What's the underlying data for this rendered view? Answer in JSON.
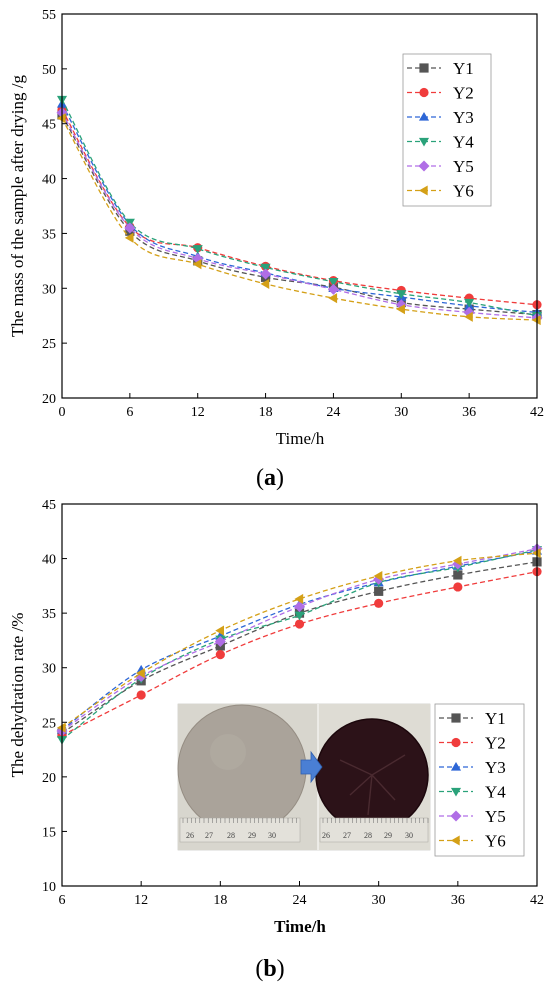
{
  "panels": [
    {
      "caption_open": "(",
      "caption_letter": "a",
      "caption_close": ")"
    },
    {
      "caption_open": "(",
      "caption_letter": "b",
      "caption_close": ")"
    }
  ],
  "photo": {
    "left_ruler_ticks": [
      "26",
      "27",
      "28",
      "29",
      "30"
    ],
    "right_ruler_ticks": [
      "26",
      "27",
      "28",
      "29",
      "30"
    ]
  },
  "chart_data": [
    {
      "type": "line",
      "title": "",
      "xlabel": "Time/h",
      "ylabel": "The mass of the sample after drying /g",
      "xlim": [
        0,
        42
      ],
      "ylim": [
        20,
        55
      ],
      "xticks": [
        0,
        6,
        12,
        18,
        24,
        30,
        36,
        42
      ],
      "yticks": [
        20,
        25,
        30,
        35,
        40,
        45,
        50,
        55
      ],
      "x": [
        0,
        6,
        12,
        18,
        24,
        30,
        36,
        42
      ],
      "grid": false,
      "legend_position": "top-right",
      "series": [
        {
          "name": "Y1",
          "color": "#555555",
          "marker": "square",
          "values": [
            45.8,
            35.2,
            32.5,
            31.0,
            30.1,
            28.7,
            28.1,
            27.6
          ]
        },
        {
          "name": "Y2",
          "color": "#f03c3c",
          "marker": "circle",
          "values": [
            46.3,
            35.6,
            33.7,
            32.0,
            30.7,
            29.8,
            29.1,
            28.5
          ]
        },
        {
          "name": "Y3",
          "color": "#2d66d6",
          "marker": "triangle-up",
          "values": [
            46.8,
            35.8,
            32.9,
            31.4,
            30.0,
            29.2,
            28.4,
            27.8
          ]
        },
        {
          "name": "Y4",
          "color": "#2aa27a",
          "marker": "triangle-down",
          "values": [
            47.2,
            36.0,
            33.6,
            31.9,
            30.6,
            29.5,
            28.7,
            27.5
          ]
        },
        {
          "name": "Y5",
          "color": "#b06ee6",
          "marker": "diamond",
          "values": [
            46.0,
            35.5,
            32.7,
            31.3,
            29.9,
            28.5,
            27.8,
            27.3
          ]
        },
        {
          "name": "Y6",
          "color": "#d4a017",
          "marker": "triangle-left",
          "values": [
            45.5,
            34.6,
            32.2,
            30.4,
            29.1,
            28.1,
            27.4,
            27.1
          ]
        }
      ]
    },
    {
      "type": "line",
      "title": "",
      "xlabel": "Time/h",
      "ylabel": "The dehydration rate /%",
      "xlim": [
        6,
        42
      ],
      "ylim": [
        10,
        45
      ],
      "xticks": [
        6,
        12,
        18,
        24,
        30,
        36,
        42
      ],
      "yticks": [
        10,
        15,
        20,
        25,
        30,
        35,
        40,
        45
      ],
      "x": [
        6,
        12,
        18,
        24,
        30,
        36,
        42
      ],
      "grid": false,
      "legend_position": "bottom-right",
      "series": [
        {
          "name": "Y1",
          "color": "#555555",
          "marker": "square",
          "values": [
            24.0,
            28.8,
            32.0,
            35.0,
            37.0,
            38.5,
            39.7
          ]
        },
        {
          "name": "Y2",
          "color": "#f03c3c",
          "marker": "circle",
          "values": [
            23.8,
            27.5,
            31.2,
            34.0,
            35.9,
            37.4,
            38.8
          ]
        },
        {
          "name": "Y3",
          "color": "#2d66d6",
          "marker": "triangle-up",
          "values": [
            24.3,
            29.8,
            32.9,
            35.8,
            37.8,
            39.3,
            40.7
          ]
        },
        {
          "name": "Y4",
          "color": "#2aa27a",
          "marker": "triangle-down",
          "values": [
            23.4,
            29.0,
            32.6,
            34.8,
            37.8,
            39.2,
            40.8
          ]
        },
        {
          "name": "Y5",
          "color": "#b06ee6",
          "marker": "diamond",
          "values": [
            24.2,
            29.2,
            32.4,
            35.6,
            38.1,
            39.5,
            40.9
          ]
        },
        {
          "name": "Y6",
          "color": "#d4a017",
          "marker": "triangle-left",
          "values": [
            24.5,
            29.5,
            33.4,
            36.3,
            38.4,
            39.8,
            40.5
          ]
        }
      ]
    }
  ]
}
